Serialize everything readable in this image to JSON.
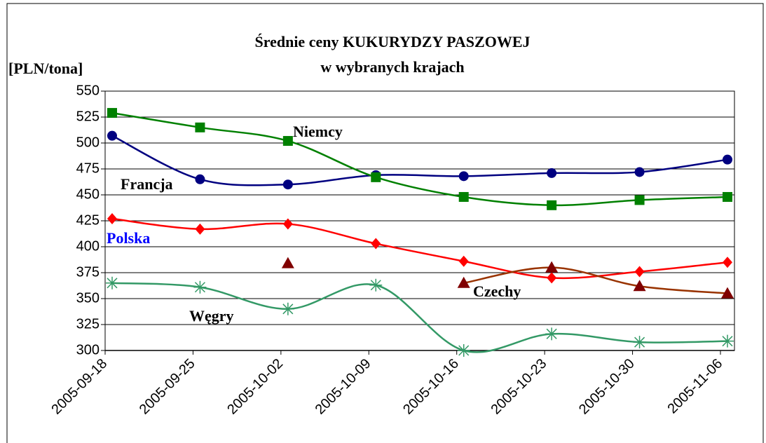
{
  "chart_data": {
    "type": "line",
    "title": "Średnie ceny KUKURYDZY PASZOWEJ",
    "subtitle": "w wybranych krajach",
    "y_label": "[PLN/tona]",
    "categories": [
      "2005-09-18",
      "2005-09-25",
      "2005-10-02",
      "2005-10-09",
      "2005-10-16",
      "2005-10-23",
      "2005-10-30",
      "2005-11-06"
    ],
    "ylim": [
      300,
      550
    ],
    "yticks": [
      300,
      325,
      350,
      375,
      400,
      425,
      450,
      475,
      500,
      525,
      550
    ],
    "grid": true,
    "series": [
      {
        "name": "Francja",
        "color": "#000080",
        "marker": "circle",
        "values": [
          507,
          465,
          460,
          469,
          468,
          471,
          472,
          484
        ]
      },
      {
        "name": "Niemcy",
        "color": "#008000",
        "marker": "square",
        "values": [
          529,
          515,
          502,
          467,
          448,
          440,
          445,
          448
        ]
      },
      {
        "name": "Polska",
        "color": "#ff0000",
        "marker": "diamond",
        "values": [
          427,
          417,
          422,
          403,
          386,
          370,
          376,
          385
        ]
      },
      {
        "name": "Czechy",
        "color": "#993300",
        "marker": "triangle",
        "values": [
          null,
          null,
          384,
          null,
          365,
          380,
          362,
          355
        ]
      },
      {
        "name": "Węgry",
        "color": "#339966",
        "marker": "star",
        "values": [
          365,
          361,
          340,
          363,
          300,
          316,
          308,
          309
        ]
      }
    ]
  }
}
